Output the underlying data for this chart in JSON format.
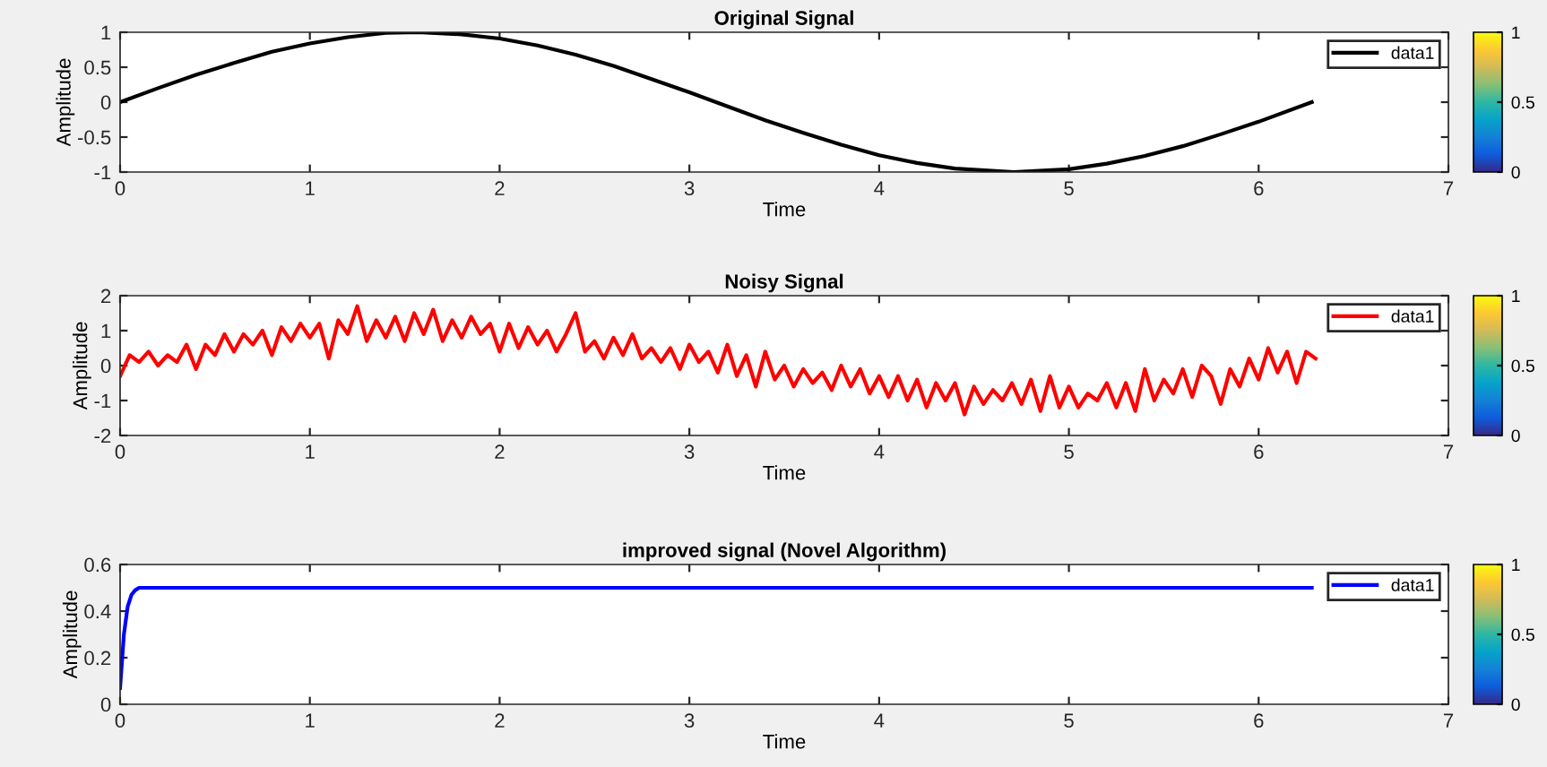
{
  "chart_data": [
    {
      "type": "line",
      "title": "Original Signal",
      "xlabel": "Time",
      "ylabel": "Amplitude",
      "legend": "top right",
      "clim": [
        0,
        1
      ],
      "cticks": [
        0,
        0.5,
        1
      ],
      "xlim": [
        0,
        7
      ],
      "xticks": [
        0,
        1,
        2,
        3,
        4,
        5,
        6,
        7
      ],
      "ylim": [
        -1,
        1
      ],
      "yticks": [
        -1,
        -0.5,
        0,
        0.5,
        1
      ],
      "series": [
        {
          "name": "data1",
          "color": "#000000",
          "x": [
            0,
            0.2,
            0.4,
            0.6,
            0.8,
            1.0,
            1.2,
            1.4,
            1.57,
            1.8,
            2.0,
            2.2,
            2.4,
            2.6,
            2.8,
            3.0,
            3.14,
            3.4,
            3.6,
            3.8,
            4.0,
            4.2,
            4.4,
            4.71,
            5.0,
            5.2,
            5.4,
            5.6,
            5.8,
            6.0,
            6.28
          ],
          "values": [
            0,
            0.2,
            0.39,
            0.56,
            0.72,
            0.84,
            0.93,
            0.99,
            1,
            0.97,
            0.91,
            0.81,
            0.68,
            0.52,
            0.33,
            0.14,
            0,
            -0.26,
            -0.44,
            -0.61,
            -0.76,
            -0.87,
            -0.95,
            -1,
            -0.96,
            -0.88,
            -0.77,
            -0.63,
            -0.46,
            -0.28,
            0
          ]
        }
      ]
    },
    {
      "type": "line",
      "title": "Noisy Signal",
      "xlabel": "Time",
      "ylabel": "Amplitude",
      "legend": "top right",
      "clim": [
        0,
        1
      ],
      "cticks": [
        0,
        0.5,
        1
      ],
      "xlim": [
        0,
        7
      ],
      "xticks": [
        0,
        1,
        2,
        3,
        4,
        5,
        6,
        7
      ],
      "ylim": [
        -2,
        2
      ],
      "yticks": [
        -2,
        -1,
        0,
        1,
        2
      ],
      "series": [
        {
          "name": "data1",
          "color": "#ff0000",
          "x": [
            0,
            0.05,
            0.1,
            0.15,
            0.2,
            0.25,
            0.3,
            0.35,
            0.4,
            0.45,
            0.5,
            0.55,
            0.6,
            0.65,
            0.7,
            0.75,
            0.8,
            0.85,
            0.9,
            0.95,
            1.0,
            1.05,
            1.1,
            1.15,
            1.2,
            1.25,
            1.3,
            1.35,
            1.4,
            1.45,
            1.5,
            1.55,
            1.6,
            1.65,
            1.7,
            1.75,
            1.8,
            1.85,
            1.9,
            1.95,
            2.0,
            2.05,
            2.1,
            2.15,
            2.2,
            2.25,
            2.3,
            2.35,
            2.4,
            2.45,
            2.5,
            2.55,
            2.6,
            2.65,
            2.7,
            2.75,
            2.8,
            2.85,
            2.9,
            2.95,
            3.0,
            3.05,
            3.1,
            3.15,
            3.2,
            3.25,
            3.3,
            3.35,
            3.4,
            3.45,
            3.5,
            3.55,
            3.6,
            3.65,
            3.7,
            3.75,
            3.8,
            3.85,
            3.9,
            3.95,
            4.0,
            4.05,
            4.1,
            4.15,
            4.2,
            4.25,
            4.3,
            4.35,
            4.4,
            4.45,
            4.5,
            4.55,
            4.6,
            4.65,
            4.7,
            4.75,
            4.8,
            4.85,
            4.9,
            4.95,
            5.0,
            5.05,
            5.1,
            5.15,
            5.2,
            5.25,
            5.3,
            5.35,
            5.4,
            5.45,
            5.5,
            5.55,
            5.6,
            5.65,
            5.7,
            5.75,
            5.8,
            5.85,
            5.9,
            5.95,
            6.0,
            6.05,
            6.1,
            6.15,
            6.2,
            6.25,
            6.3
          ],
          "values": [
            -0.3,
            0.3,
            0.1,
            0.4,
            0.0,
            0.3,
            0.1,
            0.6,
            -0.1,
            0.6,
            0.3,
            0.9,
            0.4,
            0.9,
            0.6,
            1.0,
            0.3,
            1.1,
            0.7,
            1.2,
            0.8,
            1.2,
            0.2,
            1.3,
            0.9,
            1.7,
            0.7,
            1.3,
            0.8,
            1.4,
            0.7,
            1.5,
            0.9,
            1.6,
            0.7,
            1.3,
            0.8,
            1.4,
            0.9,
            1.2,
            0.4,
            1.2,
            0.5,
            1.1,
            0.6,
            1.0,
            0.4,
            0.9,
            1.5,
            0.4,
            0.7,
            0.2,
            0.8,
            0.3,
            0.9,
            0.2,
            0.5,
            0.1,
            0.5,
            -0.1,
            0.6,
            0.1,
            0.4,
            -0.2,
            0.6,
            -0.3,
            0.3,
            -0.6,
            0.4,
            -0.4,
            0.0,
            -0.6,
            -0.1,
            -0.5,
            -0.2,
            -0.7,
            0.0,
            -0.6,
            -0.1,
            -0.8,
            -0.3,
            -0.9,
            -0.3,
            -1.0,
            -0.4,
            -1.2,
            -0.5,
            -1.0,
            -0.5,
            -1.4,
            -0.6,
            -1.1,
            -0.7,
            -1.0,
            -0.5,
            -1.1,
            -0.4,
            -1.3,
            -0.3,
            -1.2,
            -0.6,
            -1.2,
            -0.8,
            -1.0,
            -0.5,
            -1.2,
            -0.5,
            -1.3,
            -0.1,
            -1.0,
            -0.4,
            -0.8,
            -0.1,
            -0.9,
            0.0,
            -0.3,
            -1.1,
            -0.1,
            -0.6,
            0.2,
            -0.4,
            0.5,
            -0.2,
            0.4,
            -0.5,
            0.4,
            0.2
          ]
        }
      ]
    },
    {
      "type": "line",
      "title": "improved signal (Novel Algorithm)",
      "xlabel": "Time",
      "ylabel": "Amplitude",
      "legend": "top right",
      "clim": [
        0,
        1
      ],
      "cticks": [
        0,
        0.5,
        1
      ],
      "xlim": [
        0,
        7
      ],
      "xticks": [
        0,
        1,
        2,
        3,
        4,
        5,
        6,
        7
      ],
      "ylim": [
        0,
        0.6
      ],
      "yticks": [
        0,
        0.2,
        0.4,
        0.6
      ],
      "series": [
        {
          "name": "data1",
          "color": "#0000ff",
          "x": [
            0,
            0.02,
            0.04,
            0.06,
            0.08,
            0.1,
            0.15,
            0.2,
            1,
            2,
            3,
            4,
            5,
            6,
            6.28
          ],
          "values": [
            0.07,
            0.3,
            0.42,
            0.47,
            0.49,
            0.5,
            0.5,
            0.5,
            0.5,
            0.5,
            0.5,
            0.5,
            0.5,
            0.5,
            0.5
          ]
        }
      ]
    }
  ]
}
